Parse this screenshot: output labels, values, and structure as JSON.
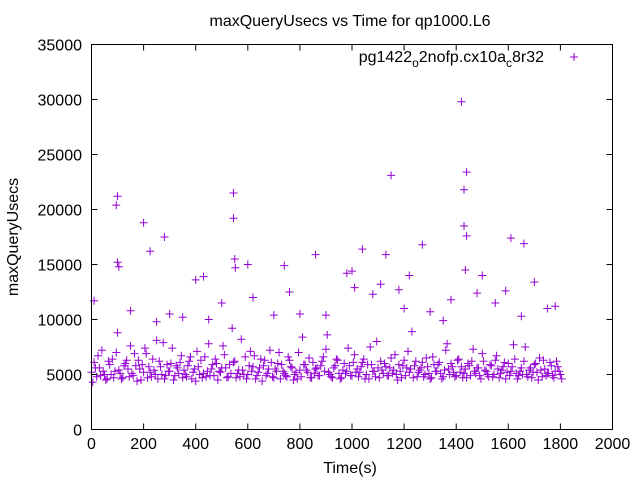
{
  "chart_data": {
    "type": "scatter",
    "title": "maxQueryUsecs vs Time for qp1000.L6",
    "xlabel": "Time(s)",
    "ylabel": "maxQueryUsecs",
    "xlim": [
      0,
      2000
    ],
    "ylim": [
      0,
      35000
    ],
    "xticks": [
      "0",
      "200",
      "400",
      "600",
      "800",
      "1000",
      "1200",
      "1400",
      "1600",
      "1800",
      "2000"
    ],
    "yticks": [
      "0",
      "5000",
      "10000",
      "15000",
      "20000",
      "25000",
      "30000",
      "35000"
    ],
    "grid": false,
    "legend": {
      "position": "top-right",
      "label_parts": [
        "pg1422",
        "o",
        "2nofp.cx10a",
        "c",
        "8r32"
      ]
    },
    "color": "#9400d3",
    "series": [
      {
        "name": "pg1422_o2nofp.cx10a_c8r32",
        "x_step": 10,
        "y_a": [
          5200,
          6100,
          4800,
          5600,
          7200,
          5000,
          4600,
          5900,
          6400,
          5300,
          8800,
          5100,
          4700,
          6000,
          5500,
          7600,
          4900,
          5800,
          6300,
          4500,
          5200,
          6900,
          5700,
          4800,
          5400,
          8100,
          6200,
          5000,
          4600,
          5900,
          5300,
          7400,
          4900,
          5600,
          6100,
          4700,
          5000,
          5800,
          6600,
          5200,
          4400,
          5700,
          6300,
          5100,
          4800,
          7800,
          5500,
          4900,
          6000,
          5300,
          5600,
          6800,
          4700,
          5900,
          9200,
          6200,
          5100,
          4800,
          5400,
          6600,
          5000,
          7100,
          5700,
          4600,
          5200,
          6400,
          5800,
          4900,
          5500,
          6100,
          4700,
          5300,
          7000,
          5900,
          5100,
          4800,
          6300,
          5600,
          5000,
          4600,
          5400,
          8400,
          5900,
          5200,
          4700,
          6100,
          5500,
          4900,
          5800,
          6600,
          7300,
          5200,
          4800,
          5600,
          6400,
          5100,
          4700,
          6000,
          5300,
          5800,
          4900,
          6800,
          5500,
          5200,
          6100,
          4600,
          5900,
          7500,
          5300,
          4800,
          5600,
          6200,
          5100,
          5700,
          4900,
          6500,
          5400,
          5000,
          5900,
          4700,
          6300,
          5600,
          5200,
          8900,
          5800,
          4800,
          5400,
          6100,
          5000,
          5700,
          4600,
          6600,
          5300,
          5900,
          5100,
          4800,
          7200,
          5500,
          6000,
          5200,
          4900,
          6400,
          5700,
          5100,
          4700,
          5800,
          6200,
          5300,
          5600,
          4900,
          6900,
          5400,
          5000,
          5900,
          4800,
          6300,
          5500,
          5100,
          5700,
          4600,
          6000,
          5300,
          7700,
          5100,
          4900,
          5600,
          6200,
          5000,
          5400,
          4700,
          5900,
          5200,
          6500,
          4800,
          5500,
          5100,
          6100,
          4900,
          5300,
          5700,
          5000
        ],
        "y_b": [
          4300,
          5600,
          6700,
          4900,
          5300,
          4500,
          6200,
          5000,
          4700,
          7000,
          5400,
          4600,
          5800,
          6300,
          4800,
          5100,
          6900,
          4400,
          5500,
          5900,
          7400,
          4700,
          5200,
          6400,
          5000,
          4600,
          5700,
          7900,
          4900,
          5300,
          6000,
          4500,
          5800,
          5100,
          6700,
          5400,
          4800,
          6200,
          4600,
          5500,
          7100,
          5000,
          4700,
          6600,
          5300,
          4900,
          5900,
          6400,
          4500,
          5200,
          7600,
          5600,
          4800,
          5100,
          6100,
          4700,
          5400,
          8200,
          5000,
          4600,
          5800,
          5300,
          6700,
          4900,
          5600,
          4400,
          6300,
          5100,
          7200,
          4800,
          5500,
          6000,
          4600,
          5300,
          4900,
          6600,
          5700,
          4500,
          5200,
          7000,
          4800,
          5900,
          5400,
          6500,
          4700,
          5100,
          5600,
          4900,
          6200,
          5300,
          8600,
          5000,
          4700,
          5800,
          6300,
          4600,
          5400,
          5100,
          7400,
          4900,
          6100,
          5200,
          4800,
          5700,
          6400,
          5000,
          4600,
          5900,
          5300,
          8000,
          4700,
          5400,
          6000,
          4900,
          5600,
          5100,
          6800,
          4500,
          5300,
          5800,
          4900,
          7100,
          5500,
          4700,
          6200,
          5200,
          5600,
          4800,
          6500,
          5100,
          4700,
          5900,
          5300,
          6100,
          4600,
          5400,
          7800,
          5000,
          5700,
          4800,
          6300,
          5200,
          4700,
          5500,
          6000,
          4900,
          7300,
          5100,
          5600,
          4600,
          6200,
          5300,
          4800,
          5800,
          5000,
          6700,
          4700,
          5400,
          6100,
          5200,
          4900,
          5700,
          6400,
          4600,
          5300,
          5000,
          7500,
          4800,
          5600,
          5200,
          6000,
          4500,
          5400,
          6300,
          4900,
          5100,
          5800,
          4700,
          6200,
          5300,
          4600
        ],
        "outliers": [
          [
            100,
            21200
          ],
          [
            95,
            20400
          ],
          [
            100,
            15200
          ],
          [
            105,
            14800
          ],
          [
            200,
            18800
          ],
          [
            225,
            16200
          ],
          [
            280,
            17500
          ],
          [
            545,
            21500
          ],
          [
            545,
            19200
          ],
          [
            550,
            15500
          ],
          [
            552,
            14700
          ],
          [
            600,
            15000
          ],
          [
            740,
            14900
          ],
          [
            860,
            15900
          ],
          [
            1000,
            14400
          ],
          [
            1040,
            16400
          ],
          [
            1150,
            23100
          ],
          [
            1130,
            15900
          ],
          [
            1270,
            16800
          ],
          [
            1420,
            29800
          ],
          [
            1430,
            21800
          ],
          [
            1440,
            23400
          ],
          [
            1430,
            18500
          ],
          [
            1440,
            17600
          ],
          [
            1435,
            14500
          ],
          [
            1610,
            17400
          ],
          [
            1660,
            16900
          ],
          [
            1700,
            13400
          ],
          [
            400,
            13600
          ],
          [
            430,
            13900
          ],
          [
            980,
            14200
          ],
          [
            1220,
            14000
          ],
          [
            1500,
            14000
          ],
          [
            10,
            11700
          ],
          [
            300,
            10500
          ],
          [
            700,
            10400
          ],
          [
            800,
            10500
          ],
          [
            900,
            10400
          ],
          [
            1200,
            11000
          ],
          [
            1300,
            10700
          ],
          [
            1550,
            11500
          ],
          [
            1750,
            11000
          ],
          [
            1780,
            11200
          ],
          [
            760,
            12500
          ],
          [
            500,
            11500
          ],
          [
            150,
            10800
          ],
          [
            350,
            10200
          ],
          [
            620,
            12000
          ],
          [
            1080,
            12300
          ],
          [
            1180,
            12700
          ],
          [
            1380,
            11800
          ],
          [
            1480,
            12400
          ],
          [
            1590,
            12600
          ],
          [
            1650,
            10300
          ],
          [
            250,
            9800
          ],
          [
            450,
            10000
          ],
          [
            1010,
            12900
          ],
          [
            1110,
            13200
          ],
          [
            1350,
            9900
          ]
        ]
      }
    ]
  }
}
